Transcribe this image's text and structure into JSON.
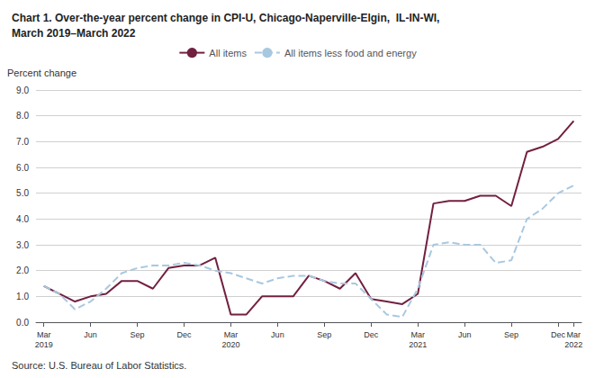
{
  "chart_data": {
    "type": "line",
    "title": "Chart 1. Over-the-year percent change in CPI-U, Chicago-Naperville-Elgin,  IL-IN-WI,\nMarch 2019–March 2022",
    "ylabel": "Percent change",
    "annotations": [
      "Source: U.S. Bureau of Labor Statistics."
    ],
    "categories": [
      "Mar\n2019",
      null,
      null,
      "Jun",
      null,
      null,
      "Sep",
      null,
      null,
      "Dec",
      null,
      null,
      "Mar\n2020",
      null,
      null,
      "Jun",
      null,
      null,
      "Sep",
      null,
      null,
      "Dec",
      null,
      null,
      "Mar\n2021",
      null,
      null,
      "Jun",
      null,
      null,
      "Sep",
      null,
      null,
      "Dec",
      "Mar\n2022"
    ],
    "series": [
      {
        "name": "All items",
        "color": "#722040",
        "line_style": "solid",
        "values": [
          1.4,
          1.1,
          0.8,
          1.0,
          1.1,
          1.6,
          1.6,
          1.3,
          2.1,
          2.2,
          2.2,
          2.5,
          0.3,
          0.3,
          1.0,
          1.0,
          1.0,
          1.8,
          1.6,
          1.3,
          1.9,
          0.9,
          0.8,
          0.7,
          1.1,
          4.6,
          4.7,
          4.7,
          4.9,
          4.9,
          4.5,
          6.6,
          6.8,
          7.1,
          7.8
        ]
      },
      {
        "name": "All items less food and energy",
        "color": "#A8C8E0",
        "line_style": "dashed",
        "values": [
          1.4,
          1.1,
          0.5,
          0.8,
          1.3,
          1.9,
          2.1,
          2.2,
          2.2,
          2.3,
          2.2,
          2.0,
          1.9,
          1.7,
          1.5,
          1.7,
          1.8,
          1.8,
          1.6,
          1.5,
          1.5,
          0.9,
          0.3,
          0.2,
          1.3,
          3.0,
          3.1,
          3.0,
          3.0,
          2.3,
          2.4,
          4.0,
          4.4,
          5.0,
          5.3
        ]
      }
    ],
    "ylim": [
      0.0,
      9.0
    ],
    "yticks": [
      {
        "value": 0,
        "label": "0.0"
      },
      {
        "value": 1,
        "label": "1.0"
      },
      {
        "value": 2,
        "label": "2.0"
      },
      {
        "value": 3,
        "label": "3.0"
      },
      {
        "value": 4,
        "label": "4.0"
      },
      {
        "value": 5,
        "label": "5.0"
      },
      {
        "value": 6,
        "label": "6.0"
      },
      {
        "value": 7,
        "label": "7.0"
      },
      {
        "value": 8,
        "label": "8.0"
      },
      {
        "value": 9,
        "label": "9.0"
      }
    ],
    "grid": true,
    "legend": "top"
  }
}
